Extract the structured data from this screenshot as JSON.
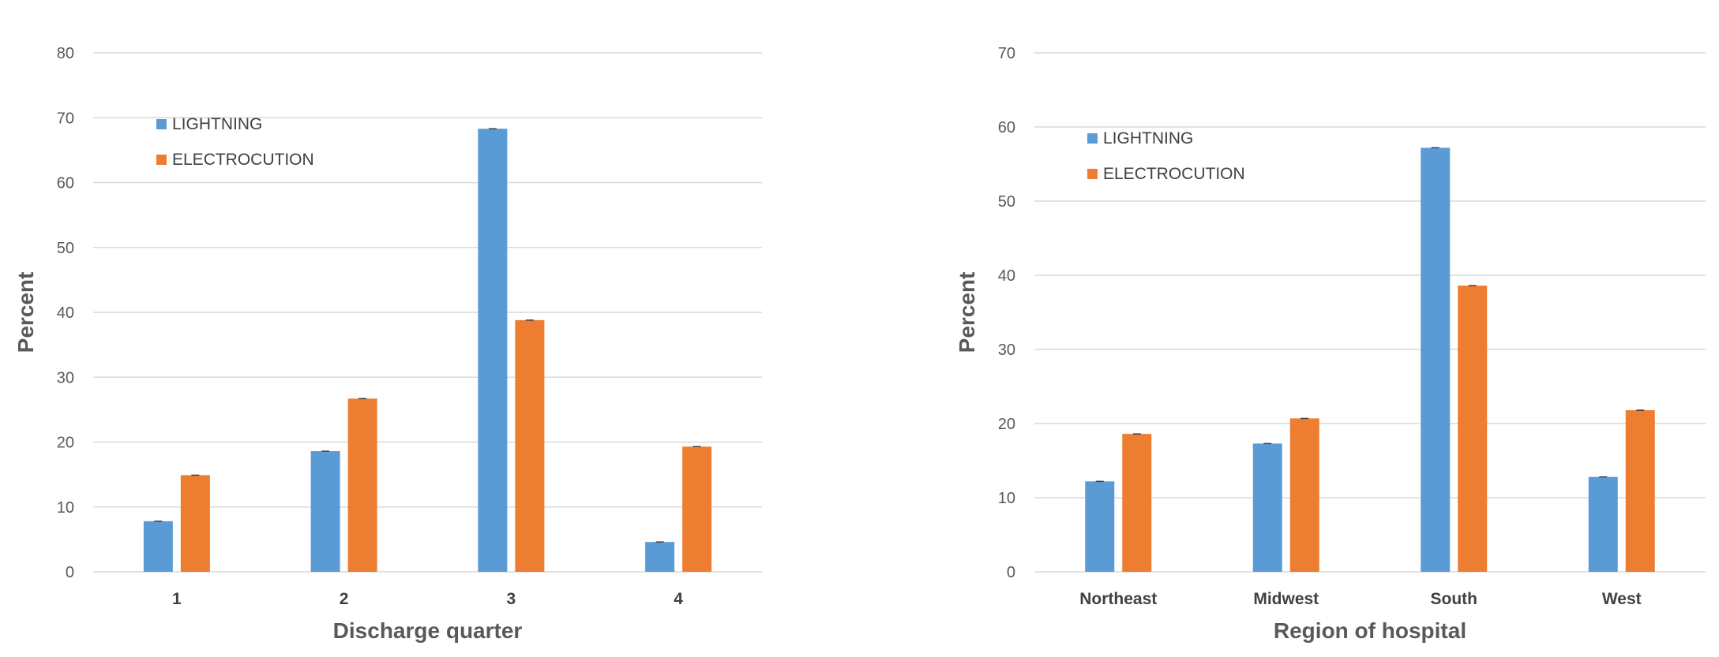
{
  "chart_data": [
    {
      "type": "bar",
      "title": "",
      "xlabel": "Discharge quarter",
      "ylabel": "Percent",
      "ylim": [
        0,
        80
      ],
      "yticks": [
        0,
        10,
        20,
        30,
        40,
        50,
        60,
        70,
        80
      ],
      "categories": [
        "1",
        "2",
        "3",
        "4"
      ],
      "series": [
        {
          "name": "LIGHTNING",
          "color": "#5b9bd5",
          "values": [
            7.8,
            18.6,
            68.3,
            4.6
          ]
        },
        {
          "name": "ELECTROCUTION",
          "color": "#ed7d31",
          "values": [
            14.9,
            26.7,
            38.8,
            19.3
          ]
        }
      ],
      "grid": true,
      "legend": "top-left"
    },
    {
      "type": "bar",
      "title": "",
      "xlabel": "Region of hospital",
      "ylabel": "Percent",
      "ylim": [
        0,
        70
      ],
      "yticks": [
        0,
        10,
        20,
        30,
        40,
        50,
        60,
        70
      ],
      "categories": [
        "Northeast",
        "Midwest",
        "South",
        "West"
      ],
      "series": [
        {
          "name": "LIGHTNING",
          "color": "#5b9bd5",
          "values": [
            12.2,
            17.3,
            57.2,
            12.8
          ]
        },
        {
          "name": "ELECTROCUTION",
          "color": "#ed7d31",
          "values": [
            18.6,
            20.7,
            38.6,
            21.8
          ]
        }
      ],
      "grid": true,
      "legend": "top-left"
    }
  ]
}
